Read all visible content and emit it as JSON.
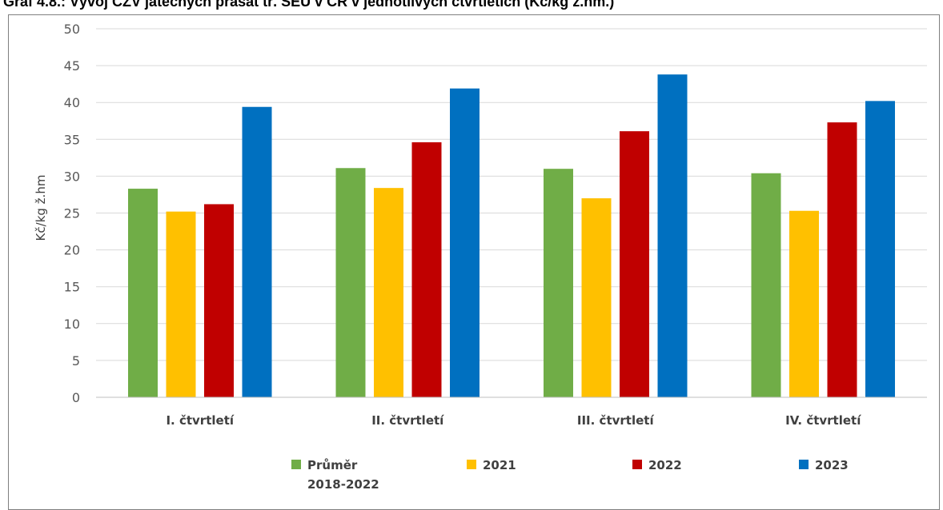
{
  "title": "Graf 4.8.: Vývoj CZV jatečných prasat tř. SEU v ČR v jednotlivých čtvrtletích (Kč/kg ž.hm.)",
  "chart_data": {
    "type": "bar",
    "title": "Graf 4.8.: Vývoj CZV jatečných prasat tř. SEU v ČR v jednotlivých čtvrtletích (Kč/kg ž.hm.)",
    "xlabel": "",
    "ylabel": "Kč/kg ž.hm",
    "ylim": [
      0,
      50
    ],
    "ytick_step": 5,
    "yticks": [
      "0",
      "5",
      "10",
      "15",
      "20",
      "25",
      "30",
      "35",
      "40",
      "45",
      "50"
    ],
    "grid": true,
    "legend_position": "bottom",
    "categories": [
      "I. čtvrtletí",
      "II. čtvrtletí",
      "III. čtvrtletí",
      "IV. čtvrtletí"
    ],
    "series": [
      {
        "name": "Průměr 2018-2022",
        "name_lines": [
          "Průměr",
          "2018-2022"
        ],
        "color": "#70ad47",
        "values": [
          28.3,
          31.1,
          31.0,
          30.4
        ]
      },
      {
        "name": "2021",
        "name_lines": [
          "2021"
        ],
        "color": "#ffc000",
        "values": [
          25.2,
          28.4,
          27.0,
          25.3
        ]
      },
      {
        "name": "2022",
        "name_lines": [
          "2022"
        ],
        "color": "#c00000",
        "values": [
          26.2,
          34.6,
          36.1,
          37.3
        ]
      },
      {
        "name": "2023",
        "name_lines": [
          "2023"
        ],
        "color": "#0070c0",
        "values": [
          39.4,
          41.9,
          43.8,
          40.2
        ]
      }
    ]
  }
}
